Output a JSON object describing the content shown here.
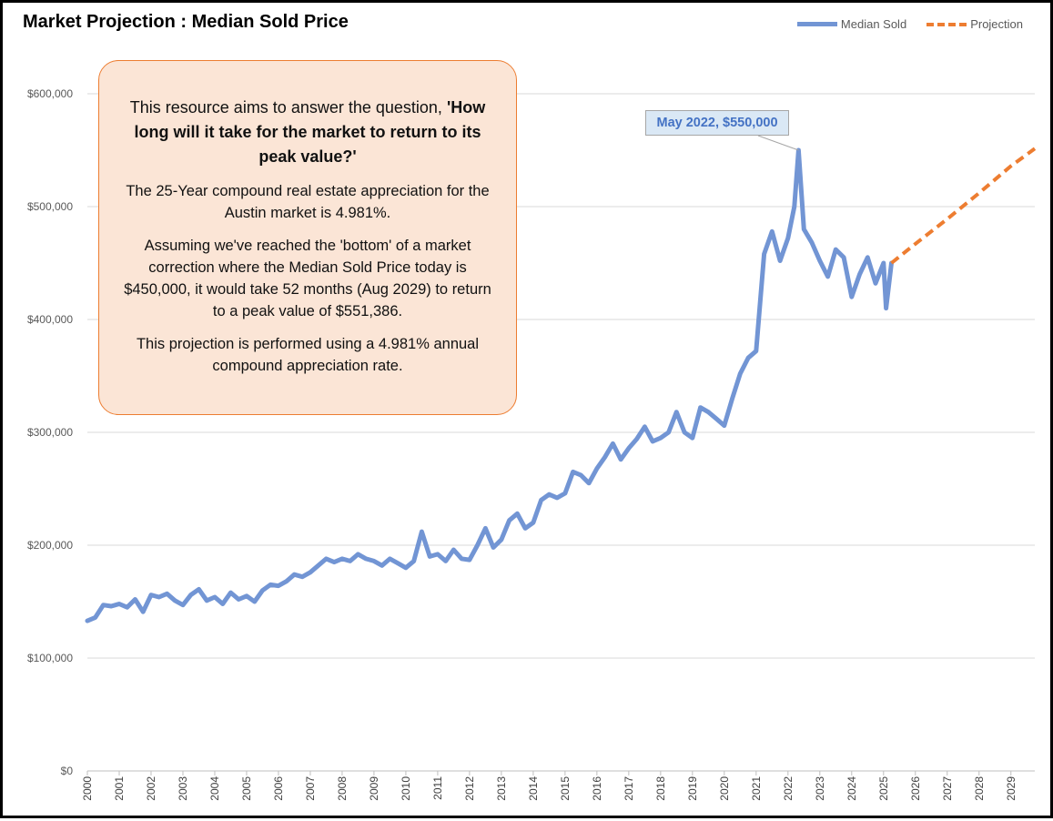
{
  "title": "Market Projection : Median Sold Price",
  "legend": [
    {
      "label": "Median Sold",
      "color": "#7295d4",
      "style": "solid"
    },
    {
      "label": "Projection",
      "color": "#ed7d31",
      "style": "dashed"
    }
  ],
  "info_box": {
    "question_prefix": "This resource aims to answer the question, ",
    "question_bold": "'How long will it take for the market to return to its peak value?'",
    "p1": "The 25-Year compound real estate appreciation for the Austin market is 4.981%.",
    "p2": "Assuming we've reached the 'bottom' of a market correction where the Median Sold Price today is $450,000, it would take 52 months (Aug 2029) to return to a peak value of $551,386.",
    "p3": "This projection is performed using a 4.981% annual compound appreciation rate."
  },
  "callout": {
    "label": "May 2022, $550,000"
  },
  "chart_data": {
    "type": "line",
    "title": "Market Projection : Median Sold Price",
    "ylim": [
      0,
      600000
    ],
    "xlim": [
      2000,
      2029.75
    ],
    "y_ticks": [
      "$0",
      "$100,000",
      "$200,000",
      "$300,000",
      "$400,000",
      "$500,000",
      "$600,000"
    ],
    "y_tick_values": [
      0,
      100000,
      200000,
      300000,
      400000,
      500000,
      600000
    ],
    "x_ticks": [
      "2000",
      "2001",
      "2002",
      "2003",
      "2004",
      "2005",
      "2006",
      "2007",
      "2008",
      "2009",
      "2010",
      "2011",
      "2012",
      "2013",
      "2014",
      "2015",
      "2016",
      "2017",
      "2018",
      "2019",
      "2020",
      "2021",
      "2022",
      "2023",
      "2024",
      "2025",
      "2026",
      "2027",
      "2028",
      "2029"
    ],
    "grid": "horizontal",
    "legend_position": "top-right",
    "series": [
      {
        "name": "Median Sold",
        "color": "#7295d4",
        "x": [
          2000.0,
          2000.25,
          2000.5,
          2000.75,
          2001.0,
          2001.25,
          2001.5,
          2001.75,
          2002.0,
          2002.25,
          2002.5,
          2002.75,
          2003.0,
          2003.25,
          2003.5,
          2003.75,
          2004.0,
          2004.25,
          2004.5,
          2004.75,
          2005.0,
          2005.25,
          2005.5,
          2005.75,
          2006.0,
          2006.25,
          2006.5,
          2006.75,
          2007.0,
          2007.25,
          2007.5,
          2007.75,
          2008.0,
          2008.25,
          2008.5,
          2008.75,
          2009.0,
          2009.25,
          2009.5,
          2009.75,
          2010.0,
          2010.25,
          2010.5,
          2010.75,
          2011.0,
          2011.25,
          2011.5,
          2011.75,
          2012.0,
          2012.25,
          2012.5,
          2012.75,
          2013.0,
          2013.25,
          2013.5,
          2013.75,
          2014.0,
          2014.25,
          2014.5,
          2014.75,
          2015.0,
          2015.25,
          2015.5,
          2015.75,
          2016.0,
          2016.25,
          2016.5,
          2016.75,
          2017.0,
          2017.25,
          2017.5,
          2017.75,
          2018.0,
          2018.25,
          2018.5,
          2018.75,
          2019.0,
          2019.25,
          2019.5,
          2019.75,
          2020.0,
          2020.25,
          2020.5,
          2020.75,
          2021.0,
          2021.25,
          2021.5,
          2021.75,
          2022.0,
          2022.2,
          2022.33,
          2022.5,
          2022.75,
          2023.0,
          2023.25,
          2023.5,
          2023.75,
          2024.0,
          2024.25,
          2024.5,
          2024.75,
          2025.0,
          2025.08,
          2025.25
        ],
        "y": [
          133000,
          136000,
          147000,
          146000,
          148000,
          145000,
          152000,
          141000,
          156000,
          154000,
          157000,
          151000,
          147000,
          156000,
          161000,
          151000,
          154000,
          148000,
          158000,
          152000,
          155000,
          150000,
          160000,
          165000,
          164000,
          168000,
          174000,
          172000,
          176000,
          182000,
          188000,
          185000,
          188000,
          186000,
          192000,
          188000,
          186000,
          182000,
          188000,
          184000,
          180000,
          186000,
          212000,
          190000,
          192000,
          186000,
          196000,
          188000,
          187000,
          200000,
          215000,
          198000,
          205000,
          222000,
          228000,
          215000,
          220000,
          240000,
          245000,
          242000,
          246000,
          265000,
          262000,
          255000,
          268000,
          278000,
          290000,
          276000,
          286000,
          294000,
          305000,
          292000,
          295000,
          300000,
          318000,
          300000,
          295000,
          322000,
          318000,
          312000,
          306000,
          330000,
          352000,
          366000,
          372000,
          458000,
          478000,
          452000,
          472000,
          500000,
          550000,
          480000,
          468000,
          452000,
          438000,
          462000,
          455000,
          420000,
          440000,
          455000,
          432000,
          450000,
          410000,
          450000
        ]
      },
      {
        "name": "Projection",
        "color": "#ed7d31",
        "style": "dashed",
        "x": [
          2025.25,
          2026.0,
          2027.0,
          2028.0,
          2029.0,
          2029.75
        ],
        "y": [
          450000,
          467000,
          489000,
          512000,
          536000,
          551386
        ]
      }
    ],
    "annotation": {
      "label": "May 2022, $550,000",
      "x": 2022.33,
      "y": 550000
    }
  }
}
